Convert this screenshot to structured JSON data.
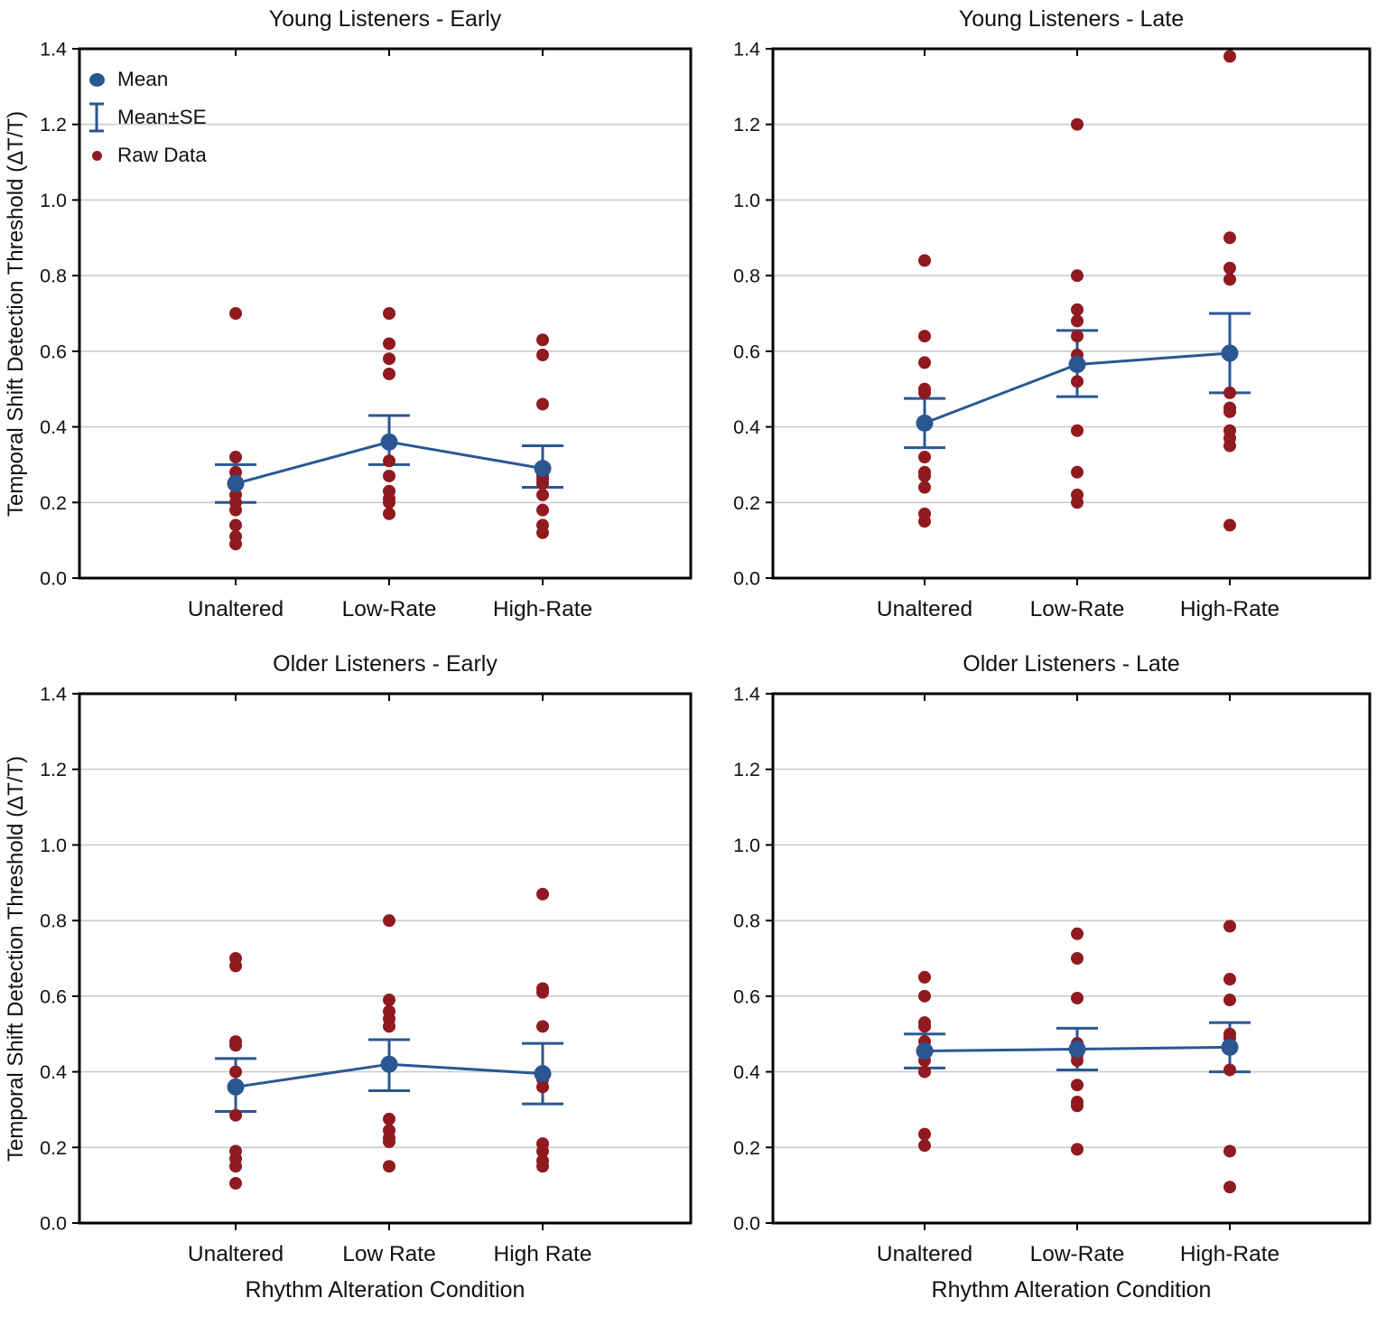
{
  "figure": {
    "ylabel": "Temporal Shift Detection Threshold (ΔT/T)",
    "xlabel": "Rhythm Alteration Condition",
    "colors": {
      "mean": "#2a5792",
      "raw": "#8f1a20",
      "grid": "#cccccc",
      "frame": "#000000",
      "text": "#111111"
    }
  },
  "legend": {
    "items": [
      "Mean",
      "Mean±SE",
      "Raw Data"
    ]
  },
  "chart_data": [
    {
      "type": "scatter",
      "title": "Young Listeners - Early",
      "categories": [
        "Unaltered",
        "Low-Rate",
        "High-Rate"
      ],
      "ylim": [
        0,
        1.4
      ],
      "yticks": [
        "0.0",
        "0.2",
        "0.4",
        "0.6",
        "0.8",
        "1.0",
        "1.2",
        "1.4"
      ],
      "grid": "horizontal",
      "legend_position": "upper-left",
      "series": [
        {
          "name": "Mean",
          "values": [
            0.25,
            0.36,
            0.29
          ]
        },
        {
          "name": "Mean-SE",
          "values": [
            0.2,
            0.3,
            0.24
          ]
        },
        {
          "name": "Mean+SE",
          "values": [
            0.3,
            0.43,
            0.35
          ]
        }
      ],
      "raw_data": [
        [
          0.7,
          0.32,
          0.28,
          0.26,
          0.22,
          0.2,
          0.18,
          0.14,
          0.11,
          0.09
        ],
        [
          0.7,
          0.62,
          0.58,
          0.54,
          0.31,
          0.27,
          0.23,
          0.21,
          0.2,
          0.17
        ],
        [
          0.63,
          0.59,
          0.46,
          0.27,
          0.26,
          0.25,
          0.22,
          0.18,
          0.14,
          0.12
        ]
      ]
    },
    {
      "type": "scatter",
      "title": "Young Listeners - Late",
      "categories": [
        "Unaltered",
        "Low-Rate",
        "High-Rate"
      ],
      "ylim": [
        0,
        1.4
      ],
      "yticks": [
        "0.0",
        "0.2",
        "0.4",
        "0.6",
        "0.8",
        "1.0",
        "1.2",
        "1.4"
      ],
      "grid": "horizontal",
      "series": [
        {
          "name": "Mean",
          "values": [
            0.41,
            0.565,
            0.595
          ]
        },
        {
          "name": "Mean-SE",
          "values": [
            0.345,
            0.48,
            0.49
          ]
        },
        {
          "name": "Mean+SE",
          "values": [
            0.475,
            0.655,
            0.7
          ]
        }
      ],
      "raw_data": [
        [
          0.84,
          0.64,
          0.57,
          0.5,
          0.49,
          0.32,
          0.28,
          0.27,
          0.24,
          0.17,
          0.15
        ],
        [
          1.2,
          0.8,
          0.71,
          0.68,
          0.64,
          0.59,
          0.52,
          0.39,
          0.28,
          0.22,
          0.2
        ],
        [
          1.38,
          0.9,
          0.82,
          0.79,
          0.49,
          0.45,
          0.44,
          0.39,
          0.37,
          0.35,
          0.14
        ]
      ]
    },
    {
      "type": "scatter",
      "title": "Older Listeners - Early",
      "categories": [
        "Unaltered",
        "Low Rate",
        "High Rate"
      ],
      "ylim": [
        0,
        1.4
      ],
      "yticks": [
        "0.0",
        "0.2",
        "0.4",
        "0.6",
        "0.8",
        "1.0",
        "1.2",
        "1.4"
      ],
      "grid": "horizontal",
      "series": [
        {
          "name": "Mean",
          "values": [
            0.36,
            0.42,
            0.395
          ]
        },
        {
          "name": "Mean-SE",
          "values": [
            0.295,
            0.35,
            0.315
          ]
        },
        {
          "name": "Mean+SE",
          "values": [
            0.435,
            0.485,
            0.475
          ]
        }
      ],
      "raw_data": [
        [
          0.7,
          0.68,
          0.48,
          0.47,
          0.4,
          0.285,
          0.19,
          0.17,
          0.15,
          0.105
        ],
        [
          0.8,
          0.59,
          0.56,
          0.54,
          0.52,
          0.275,
          0.245,
          0.225,
          0.215,
          0.15
        ],
        [
          0.87,
          0.62,
          0.61,
          0.52,
          0.38,
          0.36,
          0.21,
          0.19,
          0.165,
          0.15
        ]
      ]
    },
    {
      "type": "scatter",
      "title": "Older Listeners - Late",
      "categories": [
        "Unaltered",
        "Low-Rate",
        "High-Rate"
      ],
      "ylim": [
        0,
        1.4
      ],
      "yticks": [
        "0.0",
        "0.2",
        "0.4",
        "0.6",
        "0.8",
        "1.0",
        "1.2",
        "1.4"
      ],
      "grid": "horizontal",
      "series": [
        {
          "name": "Mean",
          "values": [
            0.455,
            0.46,
            0.465
          ]
        },
        {
          "name": "Mean-SE",
          "values": [
            0.41,
            0.405,
            0.4
          ]
        },
        {
          "name": "Mean+SE",
          "values": [
            0.5,
            0.515,
            0.53
          ]
        }
      ],
      "raw_data": [
        [
          0.65,
          0.6,
          0.53,
          0.52,
          0.48,
          0.46,
          0.43,
          0.4,
          0.235,
          0.205
        ],
        [
          0.765,
          0.7,
          0.595,
          0.475,
          0.445,
          0.43,
          0.365,
          0.32,
          0.31,
          0.195
        ],
        [
          0.785,
          0.645,
          0.59,
          0.5,
          0.49,
          0.475,
          0.46,
          0.405,
          0.19,
          0.095
        ]
      ]
    }
  ]
}
